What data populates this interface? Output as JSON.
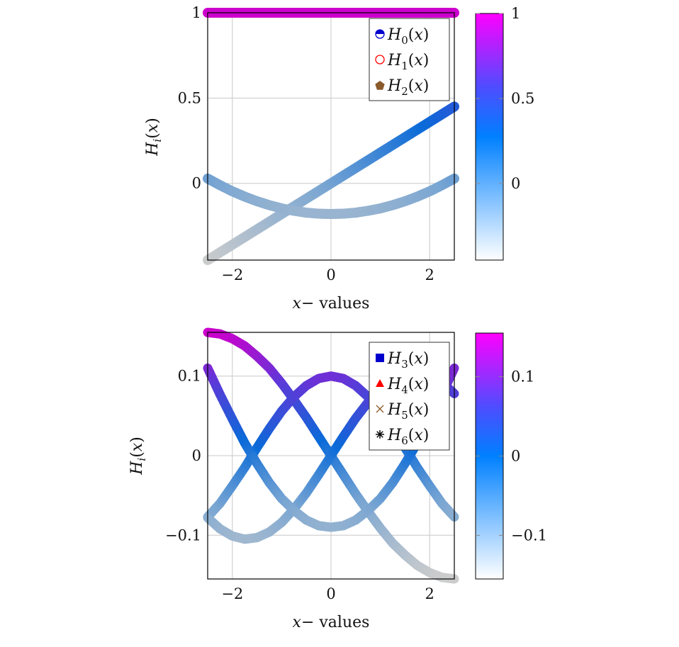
{
  "chart_data": [
    {
      "type": "line",
      "title": "",
      "xlabel": "x− values",
      "ylabel": "H_i(x)",
      "xlim": [
        -2.5,
        2.5
      ],
      "ylim": [
        -0.45,
        1.0
      ],
      "xticks": [
        -2,
        0,
        2
      ],
      "xtick_labels": [
        "−2",
        "0",
        "2"
      ],
      "yticks": [
        0,
        0.5,
        1
      ],
      "ytick_labels": [
        "0",
        "0.5",
        "1"
      ],
      "grid": true,
      "legend_position": "north east",
      "colorbar": {
        "min": -0.45,
        "max": 1.0,
        "ticks": [
          0,
          0.5,
          1
        ],
        "tick_labels": [
          "0",
          "0.5",
          "1"
        ]
      },
      "x": [
        -2.5,
        -2.25,
        -2,
        -1.75,
        -1.5,
        -1.25,
        -1,
        -0.75,
        -0.5,
        -0.25,
        0,
        0.25,
        0.5,
        0.75,
        1,
        1.25,
        1.5,
        1.75,
        2,
        2.25,
        2.5
      ],
      "series": [
        {
          "name": "H0(x)",
          "label_base": "H",
          "label_sub": "0",
          "marker": "half-circle",
          "marker_color": "#0000cc",
          "values": [
            1,
            1,
            1,
            1,
            1,
            1,
            1,
            1,
            1,
            1,
            1,
            1,
            1,
            1,
            1,
            1,
            1,
            1,
            1,
            1,
            1
          ]
        },
        {
          "name": "H1(x)",
          "label_base": "H",
          "label_sub": "1",
          "marker": "circle-open",
          "marker_color": "#ff0000",
          "values": [
            -0.45,
            -0.405,
            -0.36,
            -0.315,
            -0.27,
            -0.225,
            -0.18,
            -0.135,
            -0.09,
            -0.045,
            0,
            0.045,
            0.09,
            0.135,
            0.18,
            0.225,
            0.27,
            0.315,
            0.36,
            0.405,
            0.45
          ]
        },
        {
          "name": "H2(x)",
          "label_base": "H",
          "label_sub": "2",
          "marker": "pentagon",
          "marker_color": "#8b5a2b",
          "values": [
            0.028,
            -0.011,
            -0.047,
            -0.078,
            -0.105,
            -0.128,
            -0.147,
            -0.161,
            -0.172,
            -0.178,
            -0.18,
            -0.178,
            -0.172,
            -0.161,
            -0.147,
            -0.128,
            -0.105,
            -0.078,
            -0.047,
            -0.011,
            0.028
          ]
        }
      ]
    },
    {
      "type": "line",
      "title": "",
      "xlabel": "x− values",
      "ylabel": "H_i(x)",
      "xlim": [
        -2.5,
        2.5
      ],
      "ylim": [
        -0.155,
        0.155
      ],
      "xticks": [
        -2,
        0,
        2
      ],
      "xtick_labels": [
        "−2",
        "0",
        "2"
      ],
      "yticks": [
        -0.1,
        0,
        0.1
      ],
      "ytick_labels": [
        "−0.1",
        "0",
        "0.1"
      ],
      "grid": true,
      "legend_position": "north east",
      "colorbar": {
        "min": -0.155,
        "max": 0.155,
        "ticks": [
          -0.1,
          0,
          0.1
        ],
        "tick_labels": [
          "−0.1",
          "0",
          "0.1"
        ]
      },
      "x": [
        -2.5,
        -2.25,
        -2,
        -1.75,
        -1.5,
        -1.25,
        -1,
        -0.75,
        -0.5,
        -0.25,
        0,
        0.25,
        0.5,
        0.75,
        1,
        1.25,
        1.5,
        1.75,
        2,
        2.25,
        2.5
      ],
      "series": [
        {
          "name": "H3(x)",
          "label_base": "H",
          "label_sub": "3",
          "marker": "square",
          "marker_color": "#0000cc",
          "values": [
            0.155,
            0.153,
            0.147,
            0.138,
            0.125,
            0.11,
            0.091,
            0.07,
            0.048,
            0.024,
            0,
            -0.024,
            -0.048,
            -0.07,
            -0.091,
            -0.11,
            -0.125,
            -0.138,
            -0.147,
            -0.153,
            -0.155
          ]
        },
        {
          "name": "H4(x)",
          "label_base": "H",
          "label_sub": "4",
          "marker": "triangle",
          "marker_color": "#ff0000",
          "values": [
            -0.077,
            -0.06,
            -0.038,
            -0.015,
            0.01,
            0.034,
            0.056,
            0.074,
            0.088,
            0.097,
            0.1,
            0.097,
            0.088,
            0.074,
            0.056,
            0.034,
            0.01,
            -0.015,
            -0.038,
            -0.06,
            -0.077
          ]
        },
        {
          "name": "H5(x)",
          "label_base": "H",
          "label_sub": "5",
          "marker": "cross",
          "marker_color": "#8b5a2b",
          "values": [
            -0.078,
            -0.092,
            -0.101,
            -0.105,
            -0.103,
            -0.096,
            -0.084,
            -0.067,
            -0.047,
            -0.024,
            0,
            0.024,
            0.047,
            0.067,
            0.084,
            0.096,
            0.103,
            0.105,
            0.101,
            0.092,
            0.078
          ]
        },
        {
          "name": "H6(x)",
          "label_base": "H",
          "label_sub": "6",
          "marker": "asterisk",
          "marker_color": "#000000",
          "values": [
            0.11,
            0.077,
            0.046,
            0.016,
            -0.01,
            -0.034,
            -0.054,
            -0.069,
            -0.081,
            -0.088,
            -0.09,
            -0.088,
            -0.081,
            -0.069,
            -0.054,
            -0.034,
            -0.01,
            0.016,
            0.046,
            0.077,
            0.11
          ]
        }
      ]
    }
  ],
  "colors": {
    "curve_low": "#cccccc",
    "curve_mid_low": "#7aa6d2",
    "curve_mid": "#0a6ad8",
    "curve_mid_high": "#5a3ad8",
    "curve_high": "#cc00cc",
    "cbar_low": "#ffffff",
    "cbar_mid_low": "#66b3ff",
    "cbar_mid": "#0080ff",
    "cbar_mid_high": "#4d4dff",
    "cbar_high": "#ff00ff"
  }
}
